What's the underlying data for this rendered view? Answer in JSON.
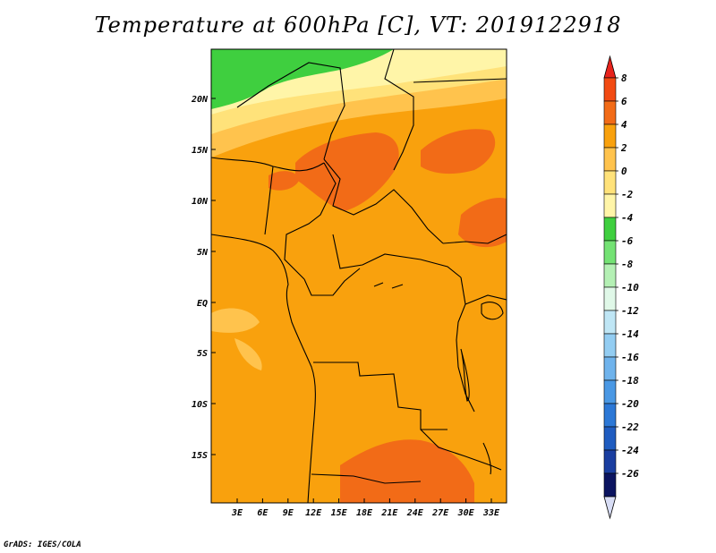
{
  "title": "Temperature at 600hPa [C], VT: 2019122918",
  "credit": "GrADS: IGES/COLA",
  "map": {
    "variable": "Temperature",
    "level": "600hPa",
    "units": "C",
    "valid_time": "2019122918",
    "lat_labels": [
      "20N",
      "15N",
      "10N",
      "5N",
      "EQ",
      "5S",
      "10S",
      "15S"
    ],
    "lon_labels": [
      "3E",
      "6E",
      "9E",
      "12E",
      "15E",
      "18E",
      "21E",
      "24E",
      "27E",
      "30E",
      "33E"
    ],
    "colors": {
      "c_m4_m2": "#fff5a8",
      "c_m2_0": "#ffe27a",
      "c_0_2": "#ffc34d",
      "c_2_4": "#f9a10d",
      "c_4_6": "#f26b17",
      "c_m6_m4": "#3fcf3f"
    }
  },
  "colorbar": {
    "labels": [
      "8",
      "6",
      "4",
      "2",
      "0",
      "-2",
      "-4",
      "-6",
      "-8",
      "-10",
      "-12",
      "-14",
      "-16",
      "-18",
      "-20",
      "-22",
      "-24",
      "-26"
    ],
    "colors": [
      "#e8231c",
      "#f24a12",
      "#f26b17",
      "#f9a10d",
      "#ffc34d",
      "#ffe27a",
      "#fff5a8",
      "#3fcf3f",
      "#74e274",
      "#b4f0b4",
      "#e0f8e8",
      "#bfe6f5",
      "#93cdf2",
      "#6fb3ec",
      "#4a98e4",
      "#2c78d6",
      "#1f5cc0",
      "#1a3ea0",
      "#0b1460",
      "#d8ddf5"
    ]
  }
}
